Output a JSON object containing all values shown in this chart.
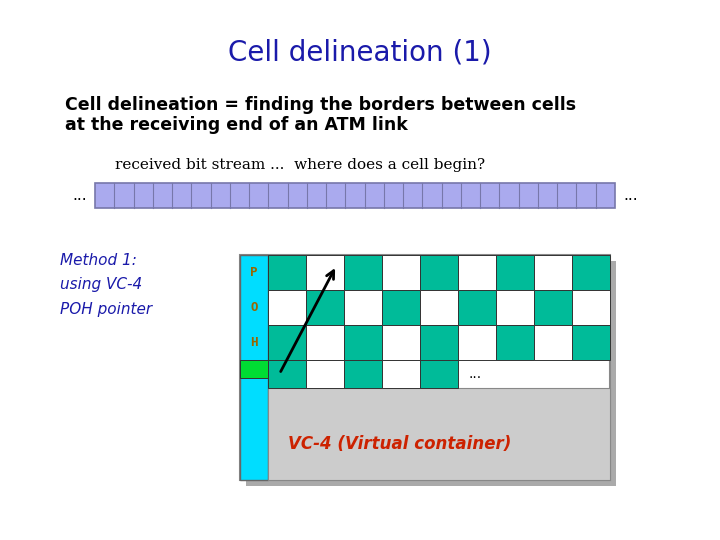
{
  "title": "Cell delineation (1)",
  "title_color": "#1a1aaa",
  "title_fontsize": 20,
  "body_text1": "Cell delineation = finding the borders between cells",
  "body_text2": "at the receiving end of an ATM link",
  "body_fontsize": 12.5,
  "stream_label": "received bit stream ...  where does a cell begin?",
  "stream_label_fontsize": 11,
  "stream_dots_left": "...",
  "stream_dots_right": "...",
  "stream_bar_color": "#aaaaee",
  "stream_bar_line_color": "#7777aa",
  "num_stream_cells": 27,
  "method_text": "Method 1:\nusing VC-4\nPOH pointer",
  "method_fontsize": 11,
  "method_color": "#1a1aaa",
  "white": "#ffffff",
  "teal": "#00bb99",
  "cyan": "#00ddff",
  "green": "#00dd33",
  "gray_light": "#cccccc",
  "gray_shadow": "#aaaaaa",
  "poh_label_color": "#996600",
  "vc4_label": "VC-4 (Virtual container)",
  "vc4_label_color": "#cc2200",
  "vc4_label_fontsize": 12
}
